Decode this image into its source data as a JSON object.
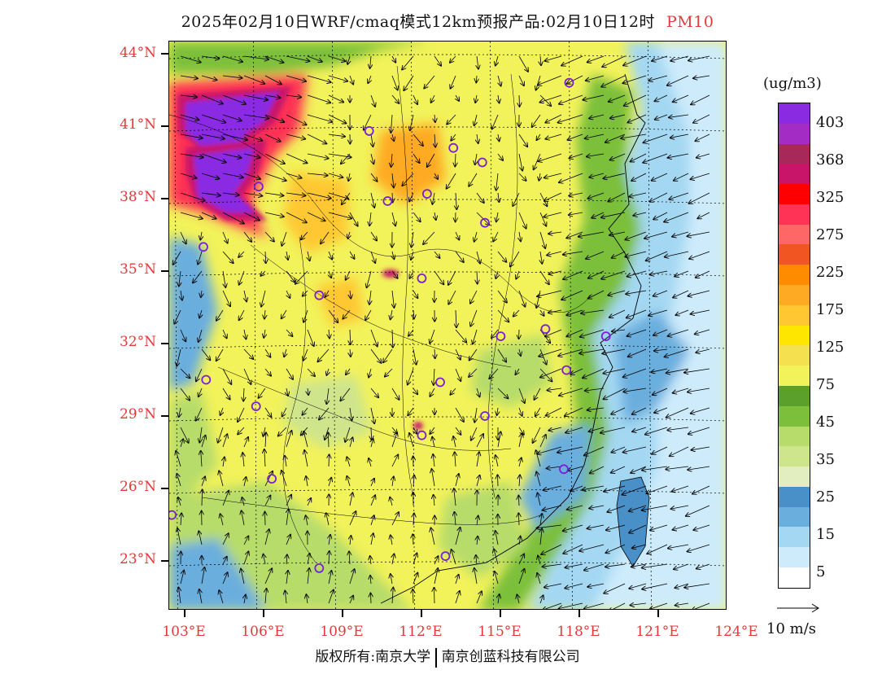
{
  "title": {
    "main": "2025年02月10日WRF/cmaq模式12km预报产品:02月10日12时",
    "variable": "PM10"
  },
  "axes": {
    "lat_labels": [
      "44°N",
      "41°N",
      "38°N",
      "35°N",
      "32°N",
      "29°N",
      "26°N",
      "23°N"
    ],
    "lon_labels": [
      "103°E",
      "106°E",
      "109°E",
      "112°E",
      "115°E",
      "118°E",
      "121°E",
      "124°E"
    ]
  },
  "legend": {
    "unit": "(ug/m3)",
    "labels": [
      "403",
      "368",
      "325",
      "275",
      "225",
      "175",
      "125",
      "75",
      "45",
      "35",
      "25",
      "15",
      "5"
    ],
    "colors": [
      "#8a2be2",
      "#a32cc4",
      "#a8285a",
      "#c8156a",
      "#ff0000",
      "#ff3355",
      "#ff6666",
      "#f05522",
      "#ff8c00",
      "#ffaa22",
      "#ffc832",
      "#ffe600",
      "#f5e050",
      "#f2f25a",
      "#5aa02a",
      "#7cbf3a",
      "#b7dc6b",
      "#cfe58c",
      "#e2eec0",
      "#4a90c8",
      "#6aaede",
      "#a4d8f2",
      "#cdebfb",
      "#ffffff"
    ]
  },
  "wind_vector": {
    "label": "10 m/s"
  },
  "cities": [
    {
      "name": "c1",
      "lon": 118.0,
      "lat": 42.8
    },
    {
      "name": "c2",
      "lon": 110.4,
      "lat": 40.8
    },
    {
      "name": "c3",
      "lon": 113.6,
      "lat": 40.1
    },
    {
      "name": "c4",
      "lon": 114.7,
      "lat": 39.5
    },
    {
      "name": "c5",
      "lon": 106.2,
      "lat": 38.5
    },
    {
      "name": "c6",
      "lon": 111.1,
      "lat": 37.9
    },
    {
      "name": "c7",
      "lon": 112.6,
      "lat": 38.2
    },
    {
      "name": "c8",
      "lon": 114.8,
      "lat": 37.0
    },
    {
      "name": "c9",
      "lon": 104.1,
      "lat": 36.0
    },
    {
      "name": "c10",
      "lon": 112.4,
      "lat": 34.7
    },
    {
      "name": "c11",
      "lon": 108.5,
      "lat": 34.0
    },
    {
      "name": "c12",
      "lon": 117.1,
      "lat": 32.6
    },
    {
      "name": "c13",
      "lon": 115.4,
      "lat": 32.3
    },
    {
      "name": "c14",
      "lon": 119.4,
      "lat": 32.3
    },
    {
      "name": "c15",
      "lon": 117.9,
      "lat": 30.9
    },
    {
      "name": "c16",
      "lon": 104.2,
      "lat": 30.5
    },
    {
      "name": "c17",
      "lon": 113.1,
      "lat": 30.4
    },
    {
      "name": "c18",
      "lon": 106.1,
      "lat": 29.4
    },
    {
      "name": "c19",
      "lon": 114.8,
      "lat": 29.0
    },
    {
      "name": "c20",
      "lon": 112.4,
      "lat": 28.2
    },
    {
      "name": "c21",
      "lon": 106.7,
      "lat": 26.4
    },
    {
      "name": "c22",
      "lon": 117.8,
      "lat": 26.8
    },
    {
      "name": "c23",
      "lon": 102.9,
      "lat": 24.9
    },
    {
      "name": "c24",
      "lon": 108.5,
      "lat": 22.7
    },
    {
      "name": "c25",
      "lon": 113.3,
      "lat": 23.2
    }
  ],
  "copyright": {
    "left": "版权所有:南京大学",
    "right": "南京创蓝科技有限公司"
  }
}
